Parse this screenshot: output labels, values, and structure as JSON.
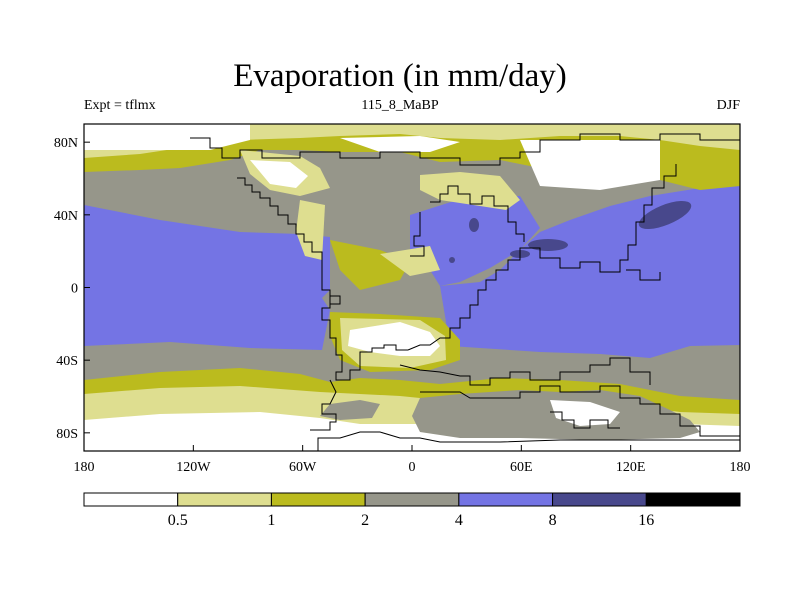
{
  "header": {
    "title": "Evaporation (in mm/day)",
    "left": "Expt = tflmx",
    "center": "115_8_MaBP",
    "right": "DJF"
  },
  "map": {
    "lon_ticks": [
      "180",
      "120W",
      "60W",
      "0",
      "60E",
      "120E",
      "180"
    ],
    "lat_ticks": [
      "80N",
      "40N",
      "0",
      "40S",
      "80S"
    ],
    "lat_values": [
      80,
      40,
      0,
      -40,
      -80
    ]
  },
  "colorbar": {
    "levels": [
      "0.5",
      "1",
      "2",
      "4",
      "8",
      "16"
    ],
    "colors": [
      "#ffffff",
      "#dede90",
      "#bbbb1e",
      "#96968a",
      "#7474e4",
      "#48488c",
      "#000000"
    ]
  },
  "palette": {
    "white": "#ffffff",
    "pale": "#dede90",
    "olive": "#bbbb1e",
    "gray": "#96968a",
    "blue": "#7474e4",
    "navy": "#48488c"
  }
}
